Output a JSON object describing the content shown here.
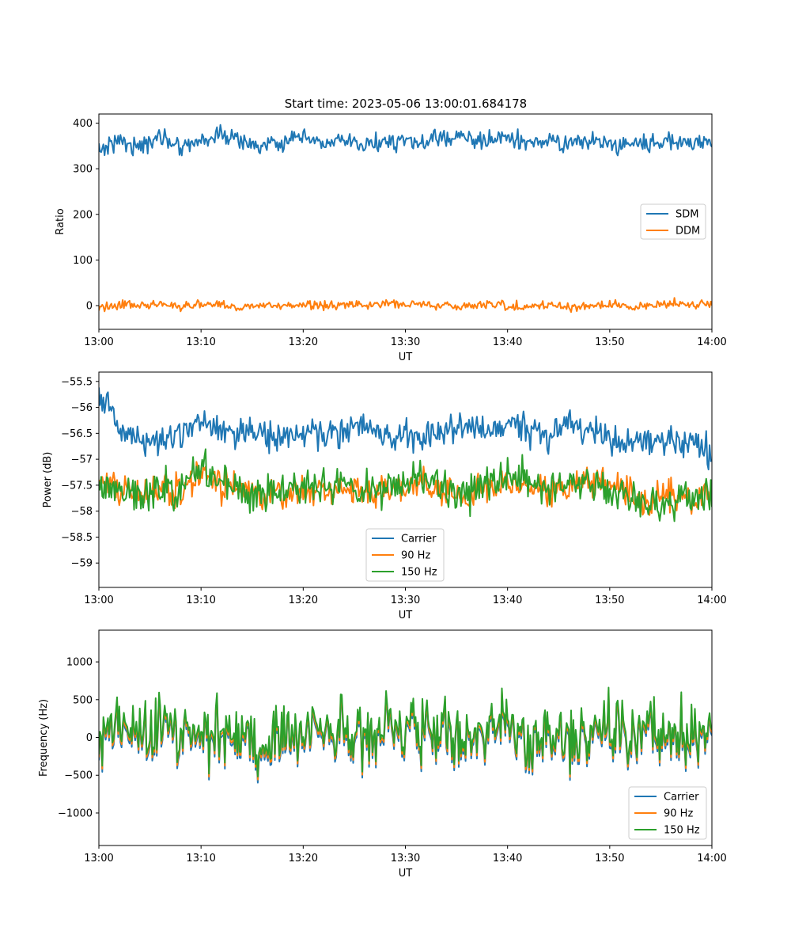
{
  "figure": {
    "title": "Start time: 2023-05-06 13:00:01.684178"
  },
  "colors": {
    "blue": "#1f77b4",
    "orange": "#ff7f0e",
    "green": "#2ca02c"
  },
  "chart_data": [
    {
      "type": "line",
      "title": "Start time: 2023-05-06 13:00:01.684178",
      "xlabel": "UT",
      "ylabel": "Ratio",
      "xlim": [
        "13:00",
        "14:00"
      ],
      "ylim": [
        -52,
        420
      ],
      "x_ticks": [
        "13:00",
        "13:10",
        "13:20",
        "13:30",
        "13:40",
        "13:50",
        "14:00"
      ],
      "y_ticks": [
        0,
        100,
        200,
        300,
        400
      ],
      "legend_position": "center-right",
      "x": [
        "13:00",
        "13:02",
        "13:04",
        "13:06",
        "13:08",
        "13:10",
        "13:12",
        "13:14",
        "13:16",
        "13:18",
        "13:20",
        "13:22",
        "13:24",
        "13:26",
        "13:28",
        "13:30",
        "13:32",
        "13:34",
        "13:36",
        "13:38",
        "13:40",
        "13:42",
        "13:44",
        "13:46",
        "13:48",
        "13:50",
        "13:52",
        "13:54",
        "13:56",
        "13:58",
        "14:00"
      ],
      "series": [
        {
          "name": "SDM",
          "color": "#1f77b4",
          "noise": 18,
          "values": [
            340,
            365,
            345,
            372,
            350,
            362,
            375,
            360,
            348,
            358,
            366,
            355,
            360,
            350,
            362,
            358,
            355,
            372,
            365,
            362,
            368,
            356,
            360,
            355,
            362,
            350,
            358,
            356,
            362,
            355,
            360
          ]
        },
        {
          "name": "DDM",
          "color": "#ff7f0e",
          "noise": 9,
          "values": [
            -5,
            2,
            0,
            3,
            -2,
            5,
            0,
            -3,
            2,
            0,
            3,
            -2,
            4,
            0,
            5,
            2,
            3,
            0,
            -2,
            4,
            0,
            -3,
            2,
            -4,
            0,
            2,
            -3,
            3,
            5,
            2,
            3
          ]
        }
      ]
    },
    {
      "type": "line",
      "title": "",
      "xlabel": "UT",
      "ylabel": "Power (dB)",
      "xlim": [
        "13:00",
        "14:00"
      ],
      "ylim": [
        -59.47,
        -55.32
      ],
      "x_ticks": [
        "13:00",
        "13:10",
        "13:20",
        "13:30",
        "13:40",
        "13:50",
        "14:00"
      ],
      "y_ticks": [
        -59.0,
        -58.5,
        -58.0,
        -57.5,
        -57.0,
        -56.5,
        -56.0,
        -55.5
      ],
      "legend_position": "bottom-center",
      "x": [
        "13:00",
        "13:02",
        "13:04",
        "13:06",
        "13:08",
        "13:10",
        "13:12",
        "13:14",
        "13:16",
        "13:18",
        "13:20",
        "13:22",
        "13:24",
        "13:26",
        "13:28",
        "13:30",
        "13:32",
        "13:34",
        "13:36",
        "13:38",
        "13:40",
        "13:42",
        "13:44",
        "13:46",
        "13:48",
        "13:50",
        "13:52",
        "13:54",
        "13:56",
        "13:58",
        "14:00"
      ],
      "series": [
        {
          "name": "Carrier",
          "color": "#1f77b4",
          "noise": 0.28,
          "values": [
            -55.7,
            -56.5,
            -56.6,
            -56.6,
            -56.5,
            -56.3,
            -56.5,
            -56.4,
            -56.5,
            -56.6,
            -56.5,
            -56.4,
            -56.5,
            -56.4,
            -56.6,
            -56.5,
            -56.6,
            -56.5,
            -56.4,
            -56.5,
            -56.3,
            -56.4,
            -56.5,
            -56.3,
            -56.5,
            -56.6,
            -56.7,
            -56.7,
            -56.7,
            -56.6,
            -56.9
          ]
        },
        {
          "name": "90 Hz",
          "color": "#ff7f0e",
          "noise": 0.3,
          "values": [
            -57.3,
            -57.6,
            -57.7,
            -57.5,
            -57.6,
            -57.3,
            -57.5,
            -57.6,
            -57.7,
            -57.6,
            -57.7,
            -57.6,
            -57.5,
            -57.7,
            -57.6,
            -57.5,
            -57.5,
            -57.6,
            -57.7,
            -57.5,
            -57.4,
            -57.5,
            -57.6,
            -57.5,
            -57.4,
            -57.5,
            -57.6,
            -57.9,
            -57.7,
            -57.8,
            -57.7
          ]
        },
        {
          "name": "150 Hz",
          "color": "#2ca02c",
          "noise": 0.32,
          "values": [
            -57.4,
            -57.7,
            -57.7,
            -57.5,
            -57.6,
            -57.2,
            -57.4,
            -57.6,
            -57.7,
            -57.6,
            -57.6,
            -57.5,
            -57.5,
            -57.6,
            -57.6,
            -57.4,
            -57.4,
            -57.6,
            -57.7,
            -57.4,
            -57.3,
            -57.4,
            -57.6,
            -57.5,
            -57.4,
            -57.6,
            -57.7,
            -57.9,
            -57.8,
            -57.7,
            -57.8
          ]
        }
      ]
    },
    {
      "type": "line",
      "title": "",
      "xlabel": "UT",
      "ylabel": "Frequency (Hz)",
      "xlim": [
        "13:00",
        "14:00"
      ],
      "ylim": [
        -1430,
        1420
      ],
      "x_ticks": [
        "13:00",
        "13:10",
        "13:20",
        "13:30",
        "13:40",
        "13:50",
        "14:00"
      ],
      "y_ticks": [
        -1000,
        -500,
        0,
        500,
        1000
      ],
      "legend_position": "lower-right",
      "x": [
        "13:00",
        "13:02",
        "13:04",
        "13:06",
        "13:08",
        "13:10",
        "13:12",
        "13:14",
        "13:16",
        "13:18",
        "13:20",
        "13:22",
        "13:24",
        "13:26",
        "13:28",
        "13:30",
        "13:32",
        "13:34",
        "13:36",
        "13:38",
        "13:40",
        "13:42",
        "13:44",
        "13:46",
        "13:48",
        "13:50",
        "13:52",
        "13:54",
        "13:56",
        "13:58",
        "14:00"
      ],
      "series": [
        {
          "name": "Carrier",
          "color": "#1f77b4",
          "noise": 380,
          "values": [
            0,
            150,
            -50,
            100,
            0,
            -50,
            50,
            0,
            -300,
            50,
            -100,
            0,
            50,
            -50,
            100,
            0,
            50,
            -50,
            0,
            0,
            100,
            -200,
            0,
            -100,
            50,
            0,
            0,
            100,
            -50,
            0,
            50
          ]
        },
        {
          "name": "90 Hz",
          "color": "#ff7f0e",
          "noise": 380,
          "values": [
            40,
            190,
            -10,
            140,
            40,
            -10,
            90,
            40,
            -260,
            90,
            -60,
            40,
            90,
            -10,
            140,
            40,
            90,
            -10,
            40,
            40,
            140,
            -160,
            40,
            -60,
            90,
            40,
            40,
            140,
            -10,
            40,
            90
          ]
        },
        {
          "name": "150 Hz",
          "color": "#2ca02c",
          "noise": 380,
          "values": [
            80,
            230,
            30,
            180,
            80,
            30,
            130,
            80,
            -220,
            130,
            -20,
            80,
            130,
            30,
            180,
            80,
            130,
            30,
            80,
            80,
            180,
            -120,
            80,
            -20,
            130,
            80,
            80,
            180,
            30,
            80,
            130
          ]
        }
      ]
    }
  ]
}
